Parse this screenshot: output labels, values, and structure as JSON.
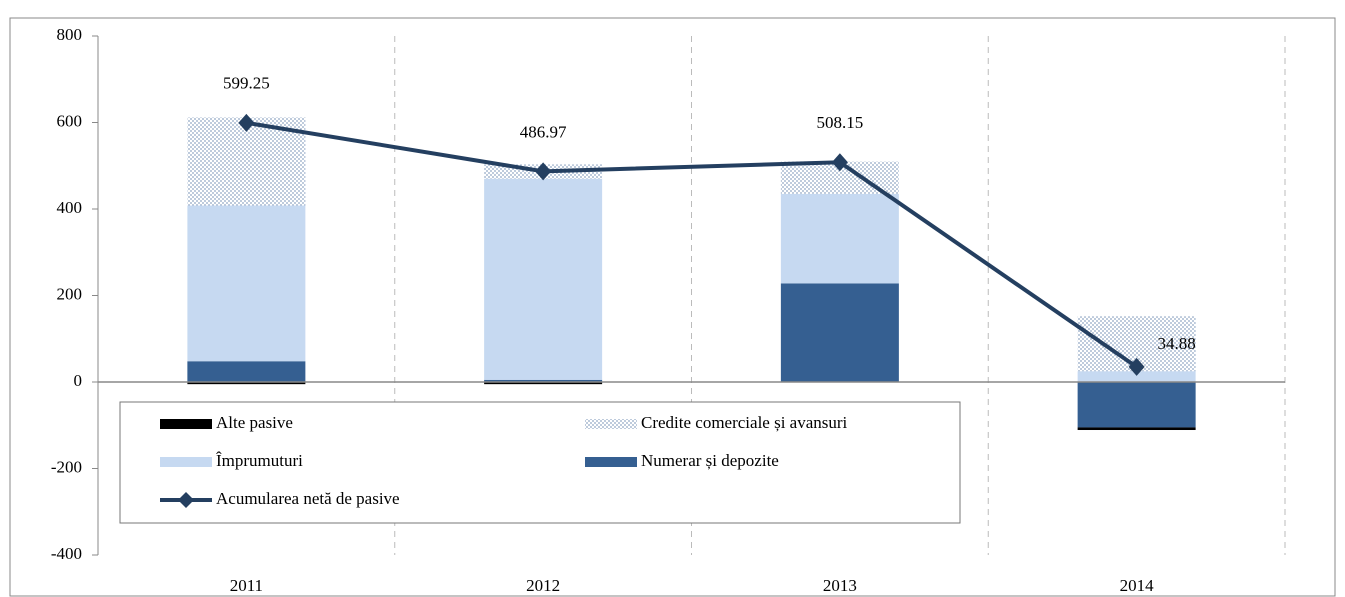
{
  "chart_data": {
    "type": "bar",
    "categories": [
      "2011",
      "2012",
      "2013",
      "2014"
    ],
    "series": [
      {
        "name": "Alte pasive",
        "color": "#000000",
        "values": [
          -5,
          -5,
          0,
          -6
        ]
      },
      {
        "name": "Credite comerciale și avansuri",
        "color": "#8fa6c4",
        "pattern": "dotted",
        "values": [
          204,
          33,
          75,
          127
        ]
      },
      {
        "name": "Împrumuturi",
        "color": "#c6d9f1",
        "values": [
          360,
          465,
          207,
          25
        ]
      },
      {
        "name": "Numerar și depozite",
        "color": "#355f91",
        "values": [
          48,
          5,
          228,
          -105
        ]
      },
      {
        "name": "Acumularea netă de pasive",
        "type": "line",
        "color": "#243f60",
        "values": [
          599.25,
          486.97,
          508.15,
          34.88
        ]
      }
    ],
    "ylim": [
      -400,
      800
    ],
    "yticks": [
      -400,
      -200,
      0,
      200,
      400,
      600,
      800
    ],
    "grid": "vertical-dashed"
  }
}
